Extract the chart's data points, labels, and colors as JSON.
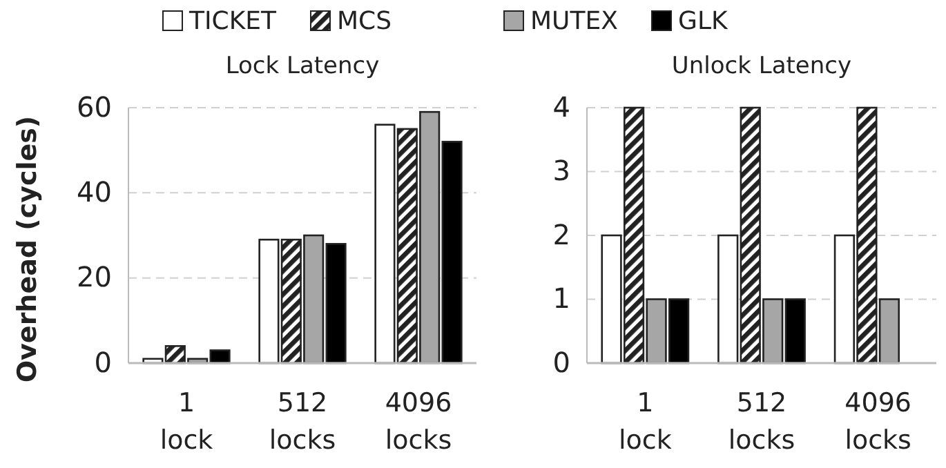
{
  "chart_data": [
    {
      "type": "bar",
      "title": "Lock Latency",
      "ylabel": "Overhead (cycles)",
      "categories": [
        "1 lock",
        "512 locks",
        "4096 locks"
      ],
      "ylim": [
        0,
        60
      ],
      "yticks": [
        0,
        20,
        40,
        60
      ],
      "grid": "y",
      "legend": "top",
      "series": [
        {
          "name": "TICKET",
          "color": "#ffffff",
          "values": [
            1,
            29,
            56
          ]
        },
        {
          "name": "MCS",
          "color": "#222222",
          "values": [
            4,
            29,
            55
          ]
        },
        {
          "name": "MUTEX",
          "color": "#a6a6a6",
          "values": [
            1,
            30,
            59
          ]
        },
        {
          "name": "GLK",
          "color": "#000000",
          "values": [
            3,
            28,
            52
          ]
        }
      ]
    },
    {
      "type": "bar",
      "title": "Unlock Latency",
      "categories": [
        "1 lock",
        "512 locks",
        "4096 locks"
      ],
      "ylim": [
        0,
        4
      ],
      "yticks": [
        0,
        1,
        2,
        3,
        4
      ],
      "grid": "y",
      "legend": "top",
      "series": [
        {
          "name": "TICKET",
          "color": "#ffffff",
          "values": [
            2,
            2,
            2
          ]
        },
        {
          "name": "MCS",
          "color": "#222222",
          "values": [
            4,
            4,
            4
          ]
        },
        {
          "name": "MUTEX",
          "color": "#a6a6a6",
          "values": [
            1,
            1,
            1
          ]
        },
        {
          "name": "GLK",
          "color": "#000000",
          "values": [
            1,
            1,
            0
          ]
        }
      ]
    }
  ]
}
